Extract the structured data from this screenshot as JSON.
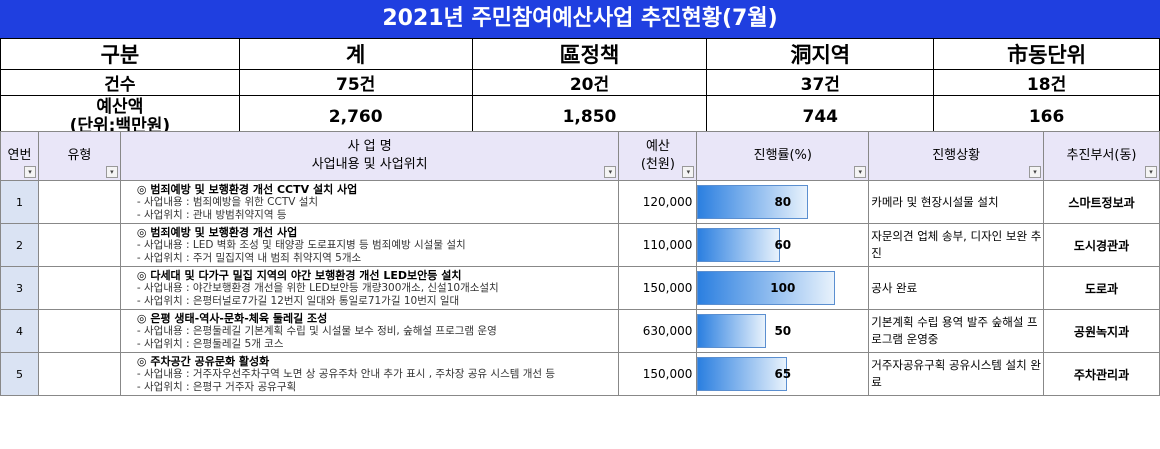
{
  "title": "2021년 주민참여예산사업 추진현황(7월)",
  "summary": {
    "headers": [
      "구분",
      "계",
      "區정책",
      "洞지역",
      "市동단위"
    ],
    "count_label": "건수",
    "counts": [
      "75건",
      "20건",
      "37건",
      "18건"
    ],
    "budget_label_1": "예산액",
    "budget_label_2": "(단위:백만원)",
    "budgets": [
      "2,760",
      "1,850",
      "744",
      "166"
    ]
  },
  "columns": {
    "no": "연번",
    "type": "유형",
    "project_1": "사 업 명",
    "project_2": "사업내용 및 사업위치",
    "budget_1": "예산",
    "budget_2": "(천원)",
    "progress": "진행률(%)",
    "status": "진행상황",
    "dept": "추진부서(동)",
    "filter_glyph": "▾"
  },
  "rows": [
    {
      "no": "1",
      "title": "◎ 범죄예방 및 보행환경 개선 CCTV 설치 사업",
      "line1": "- 사업내용 : 범죄예방을 위한 CCTV 설치",
      "line2": "- 사업위치 : 관내 방범취약지역 등",
      "budget": "120,000",
      "progress": 80,
      "progress_label": "80",
      "status": "카메라 및 현장시설물 설치",
      "dept": "스마트정보과"
    },
    {
      "no": "2",
      "title": "◎ 범죄예방 및 보행환경 개선 사업",
      "line1": "- 사업내용 : LED 벽화 조성 및 태양광 도로표지병 등 범죄예방 시설물 설치",
      "line2": "- 사업위치 : 주거 밀집지역 내 범죄 취약지역 5개소",
      "budget": "110,000",
      "progress": 60,
      "progress_label": "60",
      "status": "자문의견 업체 송부, 디자인 보완 추진",
      "dept": "도시경관과"
    },
    {
      "no": "3",
      "title": "◎ 다세대 및 다가구 밀집 지역의 야간 보행환경 개선 LED보안등 설치",
      "line1": "- 사업내용 : 야간보행환경 개선을 위한 LED보안등 개량300개소, 신설10개소설치",
      "line2": "- 사업위치 : 은평터널로7가길 12번지 일대와 통일로71가길 10번지 일대",
      "budget": "150,000",
      "progress": 100,
      "progress_label": "100",
      "status": "공사 완료",
      "dept": "도로과"
    },
    {
      "no": "4",
      "title": "◎ 은평 생태-역사-문화-체육 둘레길 조성",
      "line1": "- 사업내용 : 은평둘레길 기본계획 수립 및 시설물 보수 정비, 숲해설 프로그램 운영",
      "line2": "- 사업위치 : 은평둘레길 5개 코스",
      "budget": "630,000",
      "progress": 50,
      "progress_label": "50",
      "status": "기본계획 수립 용역 발주 숲해설 프로그램 운영중",
      "dept": "공원녹지과"
    },
    {
      "no": "5",
      "title": "◎ 주차공간 공유문화 활성화",
      "line1": "- 사업내용 : 거주자우선주차구역 노면 상 공유주차 안내 추가 표시 , 주차장 공유 시스템 개선 등",
      "line2": "- 사업위치 : 은평구 거주자 공유구획",
      "budget": "150,000",
      "progress": 65,
      "progress_label": "65",
      "status": "거주자공유구획 공유시스템 설치 완료",
      "dept": "주차관리과"
    }
  ]
}
